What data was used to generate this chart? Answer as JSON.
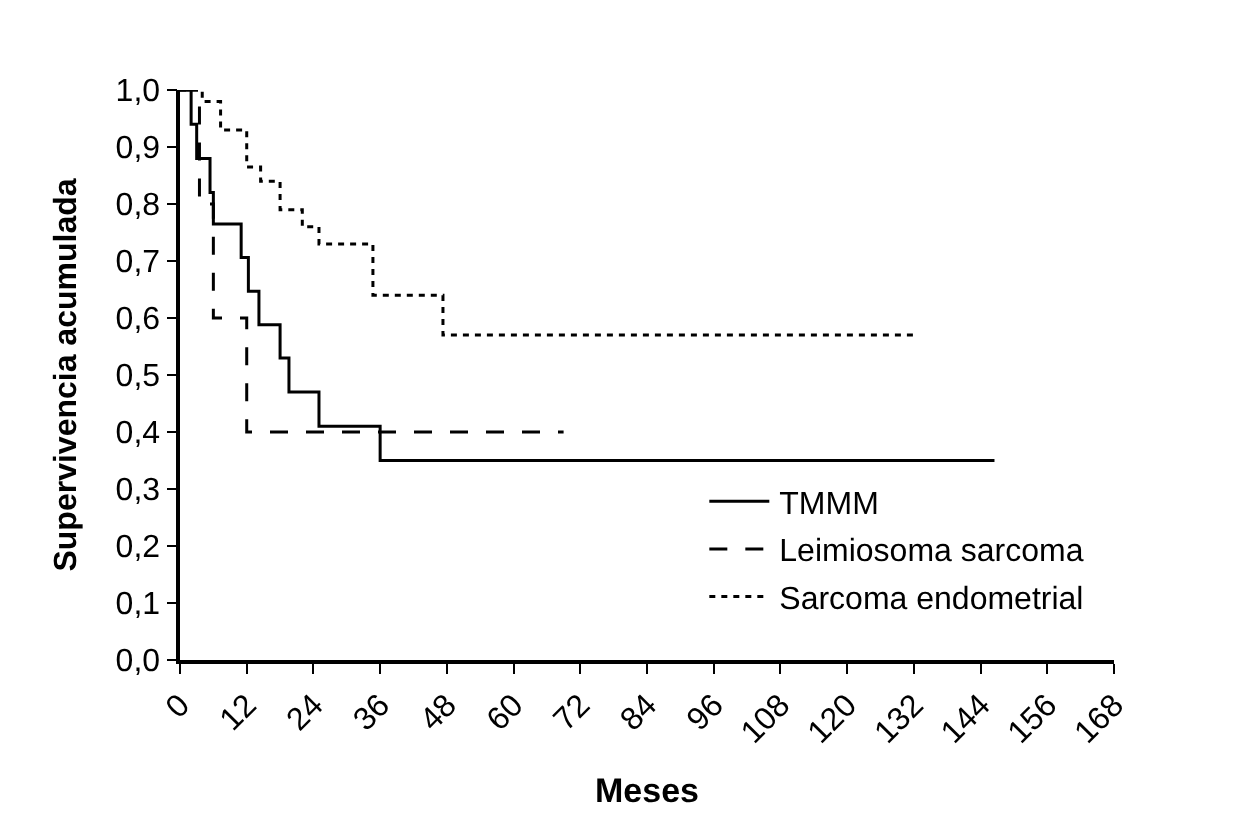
{
  "chart_data": {
    "type": "step",
    "xlabel": "Meses",
    "ylabel": "Supervivencia acumulada",
    "xlim": [
      0,
      168
    ],
    "xticks": [
      0,
      12,
      24,
      36,
      48,
      60,
      72,
      84,
      96,
      108,
      120,
      132,
      144,
      156,
      168
    ],
    "ylim": [
      0,
      1
    ],
    "yticks": [
      {
        "value": 0,
        "label": "0,0"
      },
      {
        "value": 0.1,
        "label": "0,1"
      },
      {
        "value": 0.2,
        "label": "0,2"
      },
      {
        "value": 0.3,
        "label": "0,3"
      },
      {
        "value": 0.4,
        "label": "0,4"
      },
      {
        "value": 0.5,
        "label": "0,5"
      },
      {
        "value": 0.6,
        "label": "0,6"
      },
      {
        "value": 0.7,
        "label": "0,7"
      },
      {
        "value": 0.8,
        "label": "0,8"
      },
      {
        "value": 0.9,
        "label": "0,9"
      },
      {
        "value": 1,
        "label": "1,0"
      }
    ],
    "legend": "bottom right",
    "marker": "none",
    "series": [
      {
        "name": "TMMM",
        "color": "#000000",
        "line_style": "solid",
        "x": [
          0,
          2,
          3,
          5.4,
          6,
          11,
          12.3,
          14.2,
          18,
          19.6,
          25,
          36,
          146.5
        ],
        "values": [
          1,
          0.94,
          0.88,
          0.82,
          0.765,
          0.706,
          0.647,
          0.588,
          0.53,
          0.47,
          0.41,
          0.35,
          0.35
        ]
      },
      {
        "name": "Leimiosoma sarcoma",
        "color": "#000000",
        "line_style": "dashed",
        "x": [
          0,
          3.5,
          6,
          12,
          69
        ],
        "values": [
          1,
          0.8,
          0.6,
          0.4,
          0.4
        ]
      },
      {
        "name": "Sarcoma endometrial",
        "color": "#000000",
        "line_style": "dotted",
        "x": [
          0,
          4,
          7.3,
          12,
          14.5,
          18,
          22,
          25,
          34.7,
          47.3,
          132.5
        ],
        "values": [
          1,
          0.98,
          0.93,
          0.865,
          0.84,
          0.79,
          0.76,
          0.73,
          0.64,
          0.57,
          0.57
        ]
      }
    ]
  }
}
